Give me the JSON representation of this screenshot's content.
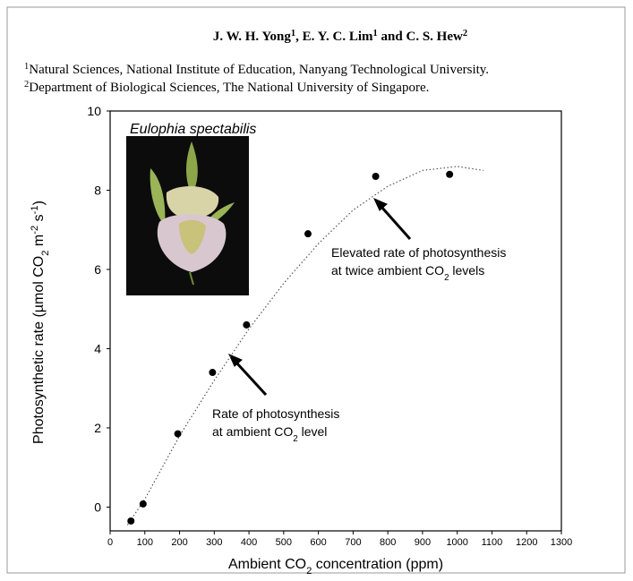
{
  "header": {
    "author_parts": [
      {
        "text": "J. W. H. Yong",
        "sup": "1"
      },
      {
        "text": ", E. Y. C. Lim",
        "sup": "1"
      },
      {
        "text": " and C. S. Hew",
        "sup": "2"
      }
    ],
    "affiliations": [
      {
        "mark": "1",
        "text": "Natural Sciences, National Institute of Education, Nanyang Technological University."
      },
      {
        "mark": "2",
        "text": "Department of Biological Sciences, The National University of Singapore."
      }
    ]
  },
  "chart_data": {
    "type": "scatter",
    "inset_title": "Eulophia spectabilis",
    "x_label_parts": [
      {
        "text": "Ambient CO"
      },
      {
        "text": "2",
        "shift": "sub"
      },
      {
        "text": " concentration (ppm)"
      }
    ],
    "y_label_parts": [
      {
        "text": "Photosynthetic rate (µmol CO"
      },
      {
        "text": "2",
        "shift": "sub"
      },
      {
        "text": " m"
      },
      {
        "text": "-2",
        "shift": "super"
      },
      {
        "text": " s"
      },
      {
        "text": "-1",
        "shift": "super"
      },
      {
        "text": ")"
      }
    ],
    "x": [
      60,
      95,
      195,
      295,
      393,
      570,
      765,
      978
    ],
    "values": [
      -0.35,
      0.08,
      1.85,
      3.4,
      4.6,
      6.9,
      8.35,
      8.4
    ],
    "color": "#000000",
    "trendline": {
      "x": [
        50,
        100,
        200,
        300,
        400,
        500,
        600,
        700,
        800,
        900,
        1000,
        1075
      ],
      "values": [
        -0.45,
        0.2,
        1.8,
        3.2,
        4.5,
        5.65,
        6.65,
        7.5,
        8.1,
        8.5,
        8.6,
        8.5
      ]
    },
    "xlim": [
      0,
      1300
    ],
    "xticks": [
      0,
      100,
      200,
      300,
      400,
      500,
      600,
      700,
      800,
      900,
      1000,
      1100,
      1200,
      1300
    ],
    "ylim": [
      -0.6,
      10
    ],
    "yticks": [
      0,
      2,
      4,
      6,
      8,
      10
    ],
    "annotations": [
      {
        "lines": [
          [
            {
              "text": "Elevated rate of photosynthesis"
            }
          ],
          [
            {
              "text": "at twice ambient CO"
            },
            {
              "text": "2",
              "shift": "sub"
            },
            {
              "text": " levels"
            }
          ]
        ]
      },
      {
        "lines": [
          [
            {
              "text": "Rate of photosynthesis"
            }
          ],
          [
            {
              "text": "at ambient CO"
            },
            {
              "text": "2",
              "shift": "sub"
            },
            {
              "text": " level"
            }
          ]
        ]
      }
    ]
  }
}
